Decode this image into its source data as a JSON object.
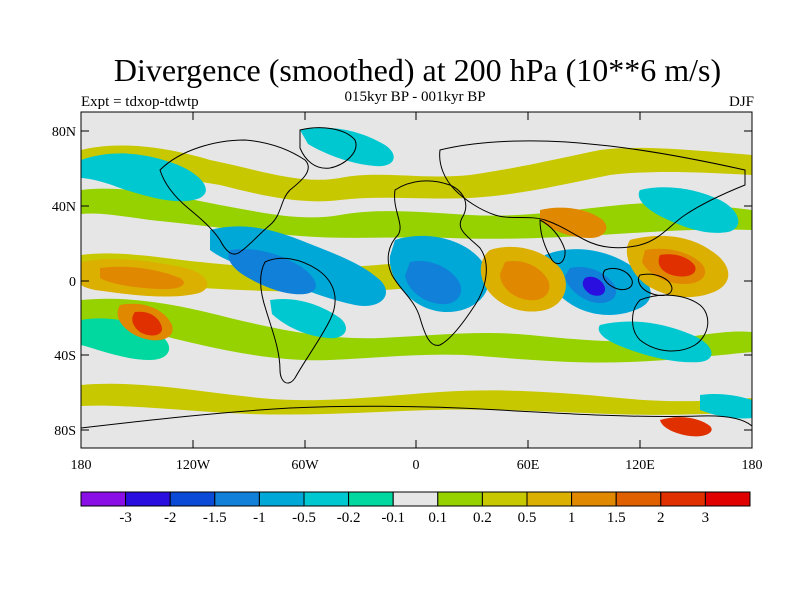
{
  "title": "Divergence (smoothed) at 200 hPa (10**6 m/s)",
  "subtitle": "015kyr BP - 001kyr BP",
  "left_label": "Expt = tdxop-tdwtp",
  "right_label": "DJF",
  "map": {
    "background_color": "#e6e6e6",
    "lat_ticks": [
      "80N",
      "40N",
      "0",
      "40S",
      "80S"
    ],
    "lon_ticks": [
      "180",
      "120W",
      "60W",
      "0",
      "60E",
      "120E",
      "180"
    ]
  },
  "colorbar": {
    "labels": [
      "-3",
      "-2",
      "-1.5",
      "-1",
      "-0.5",
      "-0.2",
      "-0.1",
      "0.1",
      "0.2",
      "0.5",
      "1",
      "1.5",
      "2",
      "3"
    ],
    "colors": [
      "#8a0ee6",
      "#2a0ee0",
      "#0a4ad6",
      "#1080d8",
      "#00a8d8",
      "#00c8d0",
      "#00d8a0",
      "#e6e6e6",
      "#96d200",
      "#c8c800",
      "#dcb000",
      "#e08800",
      "#e06000",
      "#e03000",
      "#e00000"
    ]
  }
}
